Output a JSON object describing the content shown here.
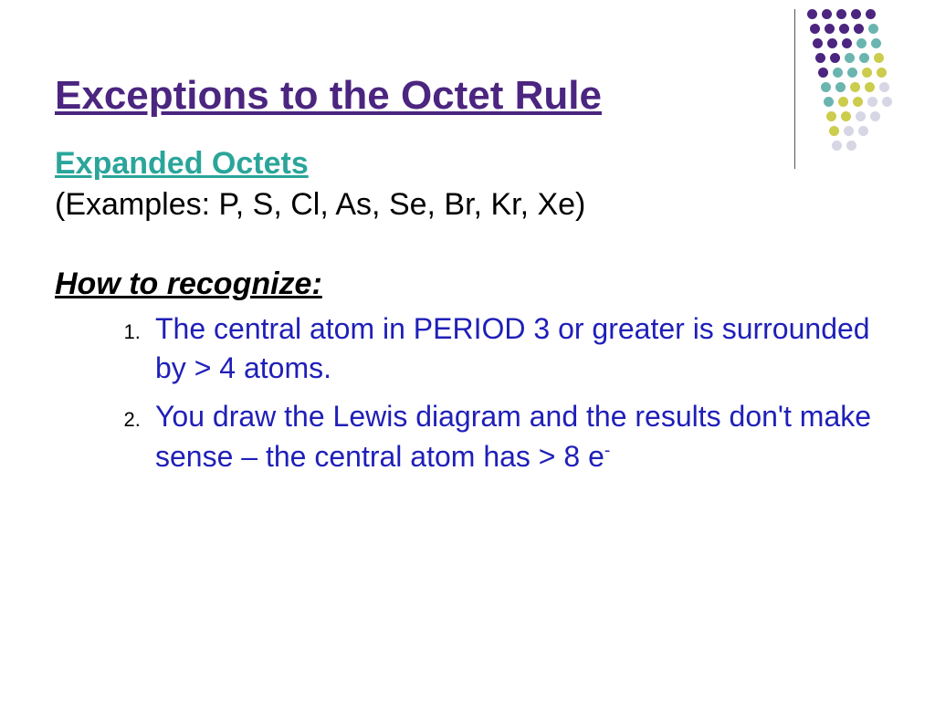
{
  "colors": {
    "title": "#4b257f",
    "subtitle": "#2aa59a",
    "examples": "#000000",
    "howto": "#000000",
    "list": "#1f1fb8",
    "dot_purple": "#4b257f",
    "dot_teal": "#6bb5b0",
    "dot_olive": "#cccc4d",
    "dot_light": "#d6d6e4"
  },
  "title": "Exceptions to the Octet Rule",
  "subtitle": "Expanded Octets",
  "examples": "(Examples: P, S, Cl, As, Se, Br, Kr, Xe)",
  "howto": "How to recognize:",
  "items": [
    "The central atom in PERIOD 3 or greater is surrounded by > 4 atoms.",
    "You draw the Lewis diagram and the results don't make sense – the central atom has > 8 e"
  ],
  "superscript": "-",
  "decoration": {
    "grid_spacing": 16,
    "dot_size": 11,
    "pattern": [
      [
        "P",
        "P",
        "P",
        "P",
        "P"
      ],
      [
        "P",
        "P",
        "P",
        "P",
        "T"
      ],
      [
        "P",
        "P",
        "P",
        "T",
        "T"
      ],
      [
        "P",
        "P",
        "T",
        "T",
        "O"
      ],
      [
        "P",
        "T",
        "T",
        "O",
        "O"
      ],
      [
        "T",
        "T",
        "O",
        "O",
        "L"
      ],
      [
        "T",
        "O",
        "O",
        "L",
        "L"
      ],
      [
        "O",
        "O",
        "L",
        "L",
        " "
      ],
      [
        "O",
        "L",
        "L",
        " ",
        " "
      ],
      [
        "L",
        "L",
        " ",
        " ",
        " "
      ]
    ],
    "color_map": {
      "P": "dot_purple",
      "T": "dot_teal",
      "O": "dot_olive",
      "L": "dot_light"
    }
  }
}
